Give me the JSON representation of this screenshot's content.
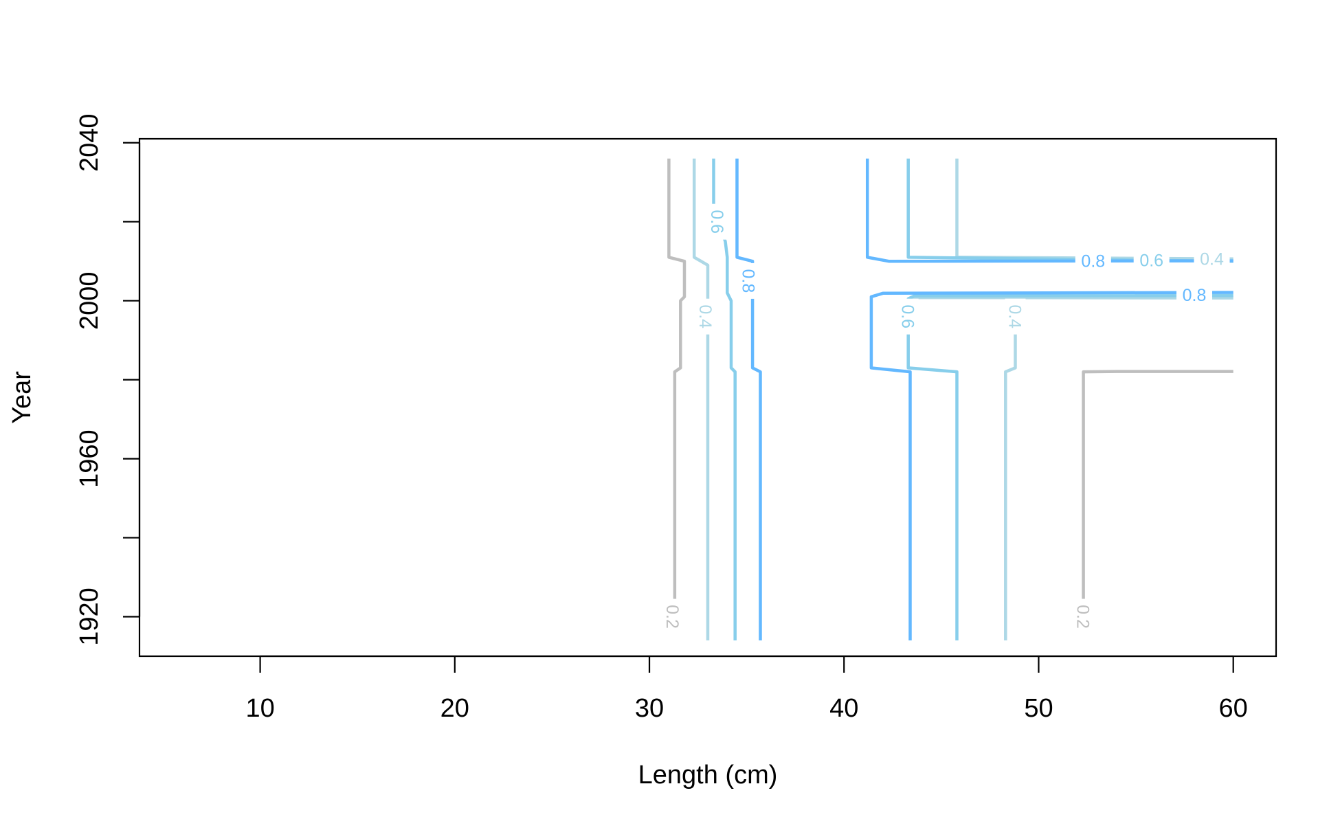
{
  "chart_data": {
    "type": "contour",
    "title": "",
    "xlabel": "Length (cm)",
    "ylabel": "Year",
    "xlim": [
      3.8,
      62.2
    ],
    "ylim": [
      1910,
      2041
    ],
    "x_ticks": [
      10,
      20,
      30,
      40,
      50,
      60
    ],
    "y_ticks": [
      1920,
      1940,
      1960,
      1980,
      2000,
      2020,
      2040
    ],
    "y_tick_labels": [
      "1920",
      "",
      "1960",
      "",
      "2000",
      "",
      "2040"
    ],
    "grid": false,
    "legend": "none",
    "colors": {
      "0.2": "#bebebe",
      "0.4": "#add8e6",
      "0.6": "#87ceeb",
      "0.8": "#63b8ff"
    },
    "series": [
      {
        "name": "0.2",
        "line_color": "#bebebe",
        "lines": [
          [
            [
              31.0,
              2036
            ],
            [
              31.0,
              2011
            ],
            [
              31.8,
              2010
            ],
            [
              31.8,
              2001
            ],
            [
              31.6,
              2000
            ],
            [
              31.6,
              1983
            ],
            [
              31.3,
              1982
            ],
            [
              31.3,
              1924
            ]
          ],
          [
            [
              52.3,
              1924
            ],
            [
              52.3,
              1982
            ],
            [
              54.0,
              1982.1
            ],
            [
              60.0,
              1982.1
            ]
          ]
        ]
      },
      {
        "name": "0.4",
        "line_color": "#add8e6",
        "lines": [
          [
            [
              32.3,
              2036
            ],
            [
              32.3,
              2011
            ],
            [
              33.0,
              2009
            ],
            [
              33.0,
              1982
            ],
            [
              33.0,
              1914
            ]
          ],
          [
            [
              45.8,
              2036
            ],
            [
              45.8,
              2011
            ],
            [
              60.0,
              2010.6
            ]
          ],
          [
            [
              60.0,
              2000.7
            ],
            [
              43.5,
              2000.8
            ],
            [
              43.3,
              2000
            ]
          ],
          [
            [
              48.8,
              2000
            ],
            [
              48.8,
              1983
            ],
            [
              48.3,
              1982
            ],
            [
              48.3,
              1914
            ]
          ]
        ]
      },
      {
        "name": "0.6",
        "line_color": "#87ceeb",
        "lines": [
          [
            [
              33.3,
              2036
            ],
            [
              33.3,
              2024
            ],
            [
              33.9,
              2015
            ],
            [
              34.0,
              2011
            ],
            [
              34.0,
              2002
            ],
            [
              34.2,
              2000
            ],
            [
              34.2,
              1983
            ],
            [
              34.4,
              1982
            ],
            [
              34.4,
              1914
            ]
          ],
          [
            [
              43.3,
              2036
            ],
            [
              43.3,
              2011
            ],
            [
              60.0,
              2010
            ]
          ],
          [
            [
              60.0,
              2001.3
            ],
            [
              43.6,
              2001.2
            ],
            [
              43.3,
              2000.5
            ],
            [
              43.3,
              1983
            ],
            [
              45.8,
              1982
            ],
            [
              45.8,
              1914
            ]
          ]
        ]
      },
      {
        "name": "0.8",
        "line_color": "#63b8ff",
        "lines": [
          [
            [
              34.5,
              2036
            ],
            [
              34.5,
              2011
            ],
            [
              35.3,
              2010
            ],
            [
              35.3,
              1983
            ],
            [
              35.7,
              1982
            ],
            [
              35.7,
              1914
            ]
          ],
          [
            [
              41.2,
              2036
            ],
            [
              41.2,
              2011
            ],
            [
              42.3,
              2010
            ],
            [
              60.0,
              2010.1
            ]
          ],
          [
            [
              60.0,
              2002.1
            ],
            [
              42.0,
              2001.9
            ],
            [
              41.4,
              2001
            ],
            [
              41.4,
              1983
            ],
            [
              43.4,
              1982
            ],
            [
              43.4,
              1914
            ]
          ]
        ]
      }
    ],
    "annotations": [
      {
        "text": "0.2",
        "x": 31.2,
        "y": 1920,
        "color": "#bebebe",
        "rotate": 90
      },
      {
        "text": "0.2",
        "x": 52.3,
        "y": 1920,
        "color": "#bebebe",
        "rotate": 90
      },
      {
        "text": "0.4",
        "x": 32.9,
        "y": 1996,
        "color": "#add8e6",
        "rotate": 90
      },
      {
        "text": "0.4",
        "x": 48.8,
        "y": 1996,
        "color": "#add8e6",
        "rotate": 90
      },
      {
        "text": "0.4",
        "x": 58.9,
        "y": 2010.6,
        "color": "#add8e6",
        "rotate": 0
      },
      {
        "text": "0.6",
        "x": 33.5,
        "y": 2020,
        "color": "#87ceeb",
        "rotate": 90
      },
      {
        "text": "0.6",
        "x": 43.3,
        "y": 1996,
        "color": "#87ceeb",
        "rotate": 90
      },
      {
        "text": "0.6",
        "x": 55.8,
        "y": 2010.3,
        "color": "#87ceeb",
        "rotate": 0
      },
      {
        "text": "0.8",
        "x": 35.1,
        "y": 2005,
        "color": "#63b8ff",
        "rotate": 90
      },
      {
        "text": "0.8",
        "x": 52.8,
        "y": 2010.1,
        "color": "#63b8ff",
        "rotate": 0
      },
      {
        "text": "0.8",
        "x": 58.0,
        "y": 2001.5,
        "color": "#63b8ff",
        "rotate": 0
      }
    ]
  }
}
